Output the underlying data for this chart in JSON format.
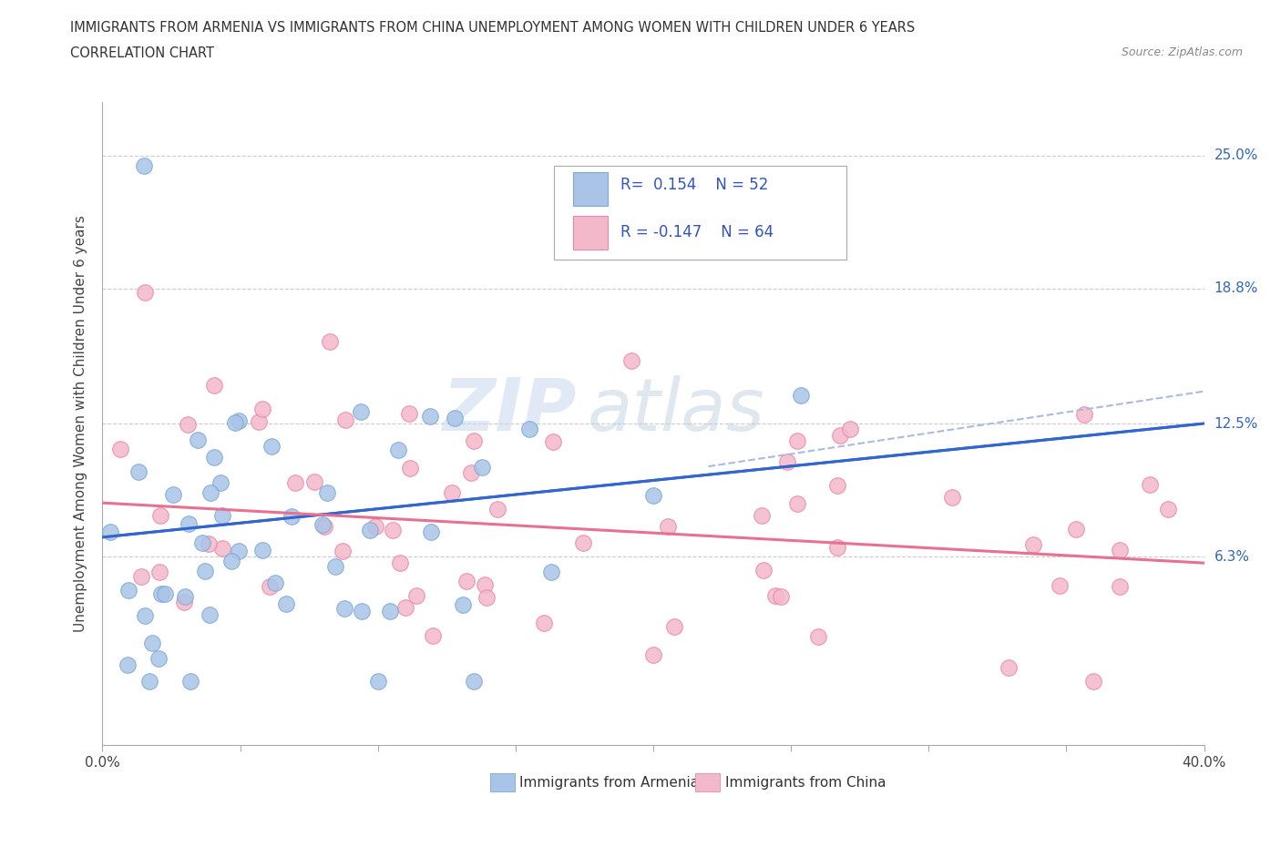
{
  "title_line1": "IMMIGRANTS FROM ARMENIA VS IMMIGRANTS FROM CHINA UNEMPLOYMENT AMONG WOMEN WITH CHILDREN UNDER 6 YEARS",
  "title_line2": "CORRELATION CHART",
  "source_text": "Source: ZipAtlas.com",
  "ylabel": "Unemployment Among Women with Children Under 6 years",
  "xlim": [
    0.0,
    0.4
  ],
  "ylim": [
    -0.025,
    0.275
  ],
  "xtick_values": [
    0.0,
    0.05,
    0.1,
    0.15,
    0.2,
    0.25,
    0.3,
    0.35,
    0.4
  ],
  "xtick_labels_show": [
    "0.0%",
    "",
    "",
    "",
    "",
    "",
    "",
    "",
    "40.0%"
  ],
  "ytick_right_labels": [
    "6.3%",
    "12.5%",
    "18.8%",
    "25.0%"
  ],
  "ytick_right_values": [
    0.063,
    0.125,
    0.188,
    0.25
  ],
  "grid_color": "#cccccc",
  "background_color": "#ffffff",
  "armenia_color": "#aac4e8",
  "armenia_edge_color": "#7aaad0",
  "china_color": "#f4b8cb",
  "china_edge_color": "#e888a8",
  "armenia_trend_color": "#3366cc",
  "china_trend_color": "#e87090",
  "dashed_line_color": "#aabbdd",
  "R_armenia": 0.154,
  "N_armenia": 52,
  "R_china": -0.147,
  "N_china": 64,
  "legend_label_armenia": "Immigrants from Armenia",
  "legend_label_china": "Immigrants from China",
  "watermark_zip": "ZIP",
  "watermark_atlas": "atlas",
  "armenia_trend_x0": 0.0,
  "armenia_trend_x1": 0.4,
  "armenia_trend_y0": 0.072,
  "armenia_trend_y1": 0.125,
  "china_trend_x0": 0.0,
  "china_trend_x1": 0.4,
  "china_trend_y0": 0.088,
  "china_trend_y1": 0.06,
  "dashed_trend_x0": 0.22,
  "dashed_trend_x1": 0.4,
  "dashed_trend_y0": 0.105,
  "dashed_trend_y1": 0.14
}
